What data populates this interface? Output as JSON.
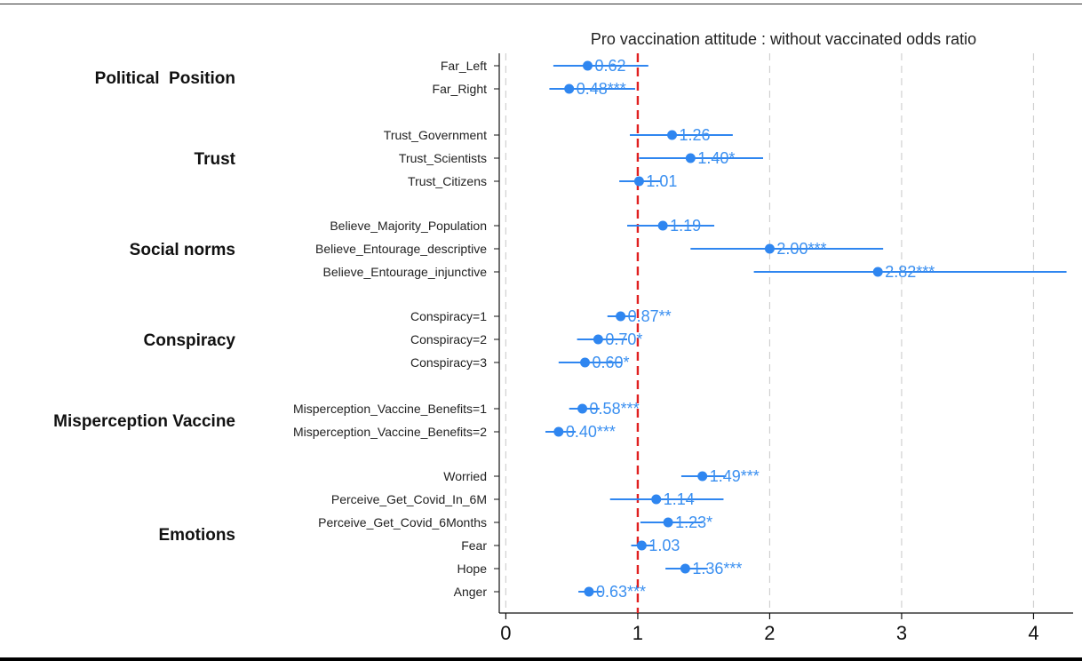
{
  "chart_data": {
    "type": "forest",
    "title": "Pro vaccination attitude : without vaccinated odds ratio",
    "xlim": [
      -0.05,
      4.3
    ],
    "xticks": [
      0,
      1,
      2,
      3,
      4
    ],
    "xtick_labels": [
      "0",
      "1",
      "2",
      "3",
      "4"
    ],
    "reference_line": 1,
    "grid": "vertical dashed",
    "groups": [
      {
        "label": "Political  Position",
        "rows": [
          0,
          1
        ]
      },
      {
        "label": "Trust",
        "rows": [
          2,
          3,
          4
        ]
      },
      {
        "label": "Social norms",
        "rows": [
          5,
          6,
          7
        ]
      },
      {
        "label": "Conspiracy",
        "rows": [
          8,
          9,
          10
        ]
      },
      {
        "label": "Misperception Vaccine",
        "rows": [
          11,
          12
        ]
      },
      {
        "label": "Emotions",
        "rows": [
          13,
          14,
          15,
          16,
          17,
          18
        ]
      }
    ],
    "rows": [
      {
        "label": "Far_Left",
        "estimate": 0.62,
        "lower": 0.36,
        "upper": 1.08,
        "value_label": "0.62"
      },
      {
        "label": "Far_Right",
        "estimate": 0.48,
        "lower": 0.33,
        "upper": 0.98,
        "value_label": "0.48***"
      },
      {
        "label": "Trust_Government",
        "estimate": 1.26,
        "lower": 0.94,
        "upper": 1.72,
        "value_label": "1.26"
      },
      {
        "label": "Trust_Scientists",
        "estimate": 1.4,
        "lower": 1.01,
        "upper": 1.95,
        "value_label": "1.40*"
      },
      {
        "label": "Trust_Citizens",
        "estimate": 1.01,
        "lower": 0.86,
        "upper": 1.18,
        "value_label": "1.01"
      },
      {
        "label": "Believe_Majority_Population",
        "estimate": 1.19,
        "lower": 0.92,
        "upper": 1.58,
        "value_label": "1.19"
      },
      {
        "label": "Believe_Entourage_descriptive",
        "estimate": 2.0,
        "lower": 1.4,
        "upper": 2.86,
        "value_label": "2.00***"
      },
      {
        "label": "Believe_Entourage_injunctive",
        "estimate": 2.82,
        "lower": 1.88,
        "upper": 4.25,
        "value_label": "2.82***"
      },
      {
        "label": "Conspiracy=1",
        "estimate": 0.87,
        "lower": 0.77,
        "upper": 0.98,
        "value_label": "0.87**"
      },
      {
        "label": "Conspiracy=2",
        "estimate": 0.7,
        "lower": 0.54,
        "upper": 0.92,
        "value_label": "0.70*"
      },
      {
        "label": "Conspiracy=3",
        "estimate": 0.6,
        "lower": 0.4,
        "upper": 0.88,
        "value_label": "0.60*"
      },
      {
        "label": "Misperception_Vaccine_Benefits=1",
        "estimate": 0.58,
        "lower": 0.48,
        "upper": 0.71,
        "value_label": "0.58***"
      },
      {
        "label": "Misperception_Vaccine_Benefits=2",
        "estimate": 0.4,
        "lower": 0.3,
        "upper": 0.53,
        "value_label": "0.40***"
      },
      {
        "label": "Worried",
        "estimate": 1.49,
        "lower": 1.33,
        "upper": 1.67,
        "value_label": "1.49***"
      },
      {
        "label": "Perceive_Get_Covid_In_6M",
        "estimate": 1.14,
        "lower": 0.79,
        "upper": 1.65,
        "value_label": "1.14"
      },
      {
        "label": "Perceive_Get_Covid_6Months",
        "estimate": 1.23,
        "lower": 1.02,
        "upper": 1.49,
        "value_label": "1.23*"
      },
      {
        "label": "Fear",
        "estimate": 1.03,
        "lower": 0.95,
        "upper": 1.12,
        "value_label": "1.03"
      },
      {
        "label": "Hope",
        "estimate": 1.36,
        "lower": 1.21,
        "upper": 1.53,
        "value_label": "1.36***"
      },
      {
        "label": "Anger",
        "estimate": 0.63,
        "lower": 0.55,
        "upper": 0.73,
        "value_label": "0.63***"
      }
    ],
    "colors": {
      "marker": "#2f86f0",
      "ci_line": "#2f86f0",
      "value_label": "#3a8ff0",
      "reference_line": "#e02020",
      "grid": "#d0d0d0",
      "axis": "#111111"
    }
  }
}
